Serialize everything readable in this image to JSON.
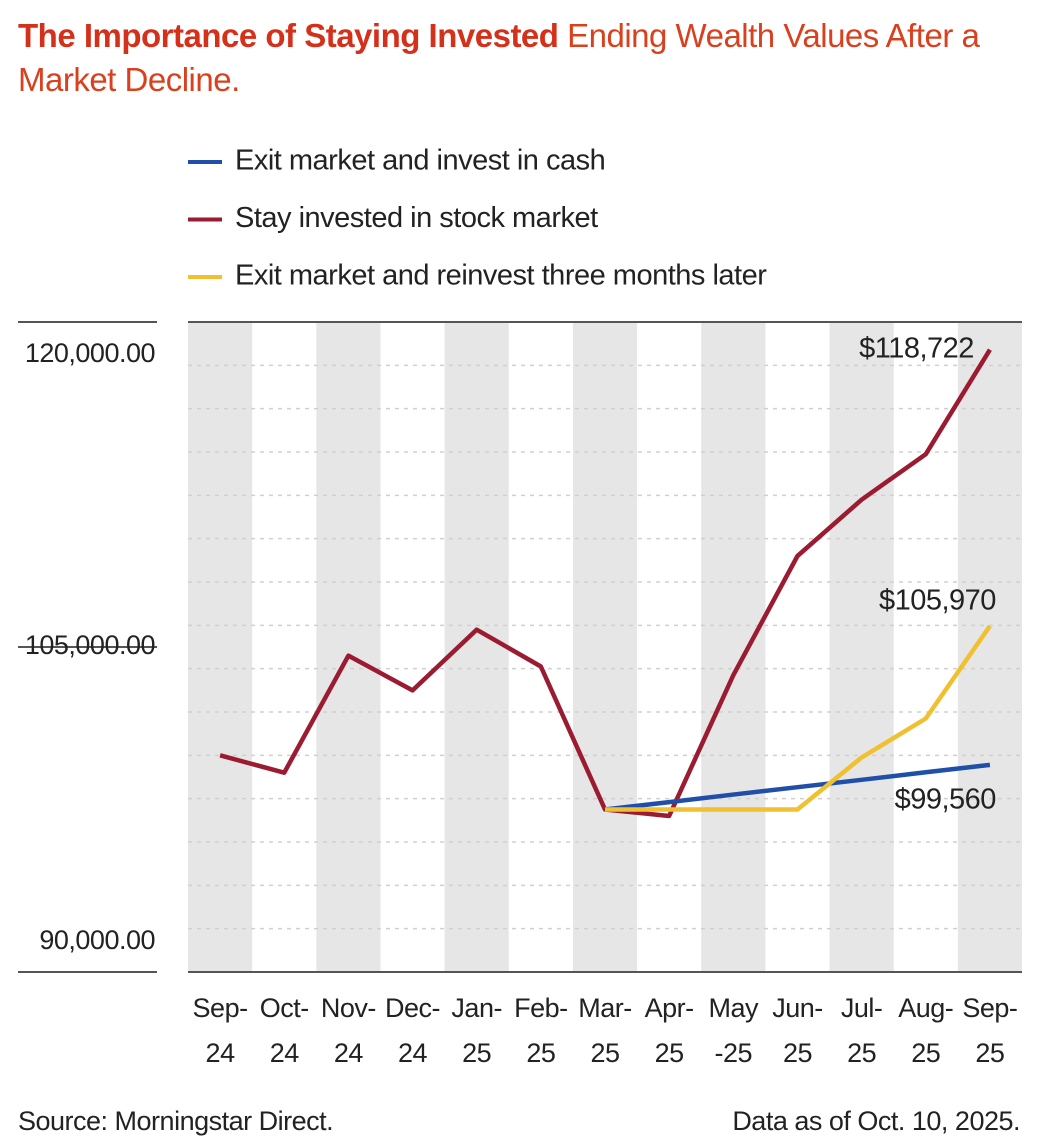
{
  "chart_data": {
    "type": "line",
    "title": "The Importance of Staying Invested",
    "subtitle": "Ending Wealth Values After a Market Decline.",
    "categories": [
      "Sep- 24",
      "Oct- 24",
      "Nov- 24",
      "Dec- 24",
      "Jan- 25",
      "Feb- 25",
      "Mar- 25",
      "Apr- 25",
      "May -25",
      "Jun- 25",
      "Jul- 25",
      "Aug- 25",
      "Sep- 25"
    ],
    "series": [
      {
        "name": "Exit market and invest in cash",
        "color": "#1f4fa8",
        "values": [
          null,
          null,
          null,
          null,
          null,
          null,
          97500,
          97840,
          98190,
          98530,
          98870,
          99220,
          99560
        ],
        "value_labels": [
          null,
          null,
          null,
          null,
          null,
          null,
          null,
          null,
          null,
          null,
          null,
          null,
          "$99,560"
        ]
      },
      {
        "name": "Stay invested in stock market",
        "color": "#9b1b30",
        "values": [
          100000,
          99200,
          104600,
          103000,
          105800,
          104100,
          97500,
          97200,
          103700,
          109200,
          111800,
          113900,
          118722
        ],
        "value_labels": [
          null,
          null,
          null,
          null,
          null,
          null,
          null,
          null,
          null,
          null,
          null,
          null,
          "$118,722"
        ]
      },
      {
        "name": "Exit market and reinvest three months later",
        "color": "#f0c030",
        "values": [
          null,
          null,
          null,
          null,
          null,
          null,
          97500,
          97500,
          97500,
          97500,
          99900,
          101700,
          105970
        ],
        "value_labels": [
          null,
          null,
          null,
          null,
          null,
          null,
          null,
          null,
          null,
          null,
          null,
          null,
          "$105,970"
        ]
      }
    ],
    "ylim": [
      90000,
      120000
    ],
    "yticks": [
      {
        "value": 90000,
        "label": "90,000.00"
      },
      {
        "value": 105000,
        "label": "105,000.00"
      },
      {
        "value": 120000,
        "label": "120,000.00"
      }
    ],
    "minor_yticks": [
      92000,
      94000,
      96000,
      98000,
      100000,
      102000,
      104000,
      106000,
      108000,
      110000,
      112000,
      114000,
      116000,
      118000
    ],
    "grid": true,
    "source": "Source: Morningstar Direct.",
    "note": "Data as of Oct. 10, 2025."
  }
}
